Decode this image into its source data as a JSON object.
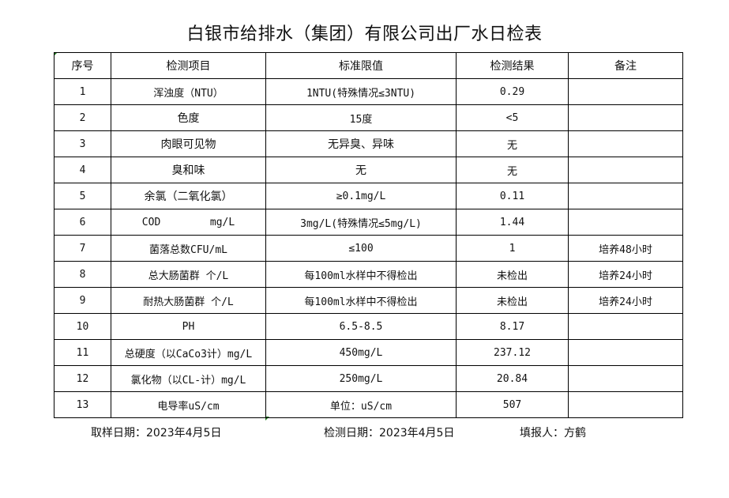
{
  "title": "白银市给排水（集团）有限公司出厂水日检表",
  "headers": [
    "序号",
    "检测项目",
    "标准限值",
    "检测结果",
    "备注"
  ],
  "rows": [
    [
      "1",
      "浑浊度（NTU）",
      "1NTU(特殊情况≤3NTU)",
      "0.29",
      ""
    ],
    [
      "2",
      "色度",
      "15度",
      "<5",
      ""
    ],
    [
      "3",
      "肉眼可见物",
      "无异臭、异味",
      "无",
      ""
    ],
    [
      "4",
      "臭和味",
      "无",
      "无",
      ""
    ],
    [
      "5",
      "余氯（二氧化氯）",
      "≥0.1mg/L",
      "0.11",
      ""
    ],
    [
      "6",
      "COD        mg/L",
      "3mg/L(特殊情况≤5mg/L)",
      "1.44",
      ""
    ],
    [
      "7",
      "菌落总数CFU/mL",
      "≤100",
      "1",
      "培养48小时"
    ],
    [
      "8",
      "总大肠菌群 个/L",
      "每100ml水样中不得检出",
      "未检出",
      "培养24小时"
    ],
    [
      "9",
      "耐热大肠菌群 个/L",
      "每100ml水样中不得检出",
      "未检出",
      "培养24小时"
    ],
    [
      "10",
      "PH",
      "6.5-8.5",
      "8.17",
      ""
    ],
    [
      "11",
      "总硬度（以CaCo3计）mg/L",
      "450mg/L",
      "237.12",
      ""
    ],
    [
      "12",
      "氯化物（以CL-计）mg/L",
      "250mg/L",
      "20.84",
      ""
    ],
    [
      "13",
      "电导率uS/cm",
      "单位：uS/cm",
      "507",
      ""
    ]
  ],
  "footer": {
    "sample_date": "取样日期：2023年4月5日",
    "test_date": "检测日期：2023年4月5日",
    "filled_by": "填报人：方鹤"
  }
}
